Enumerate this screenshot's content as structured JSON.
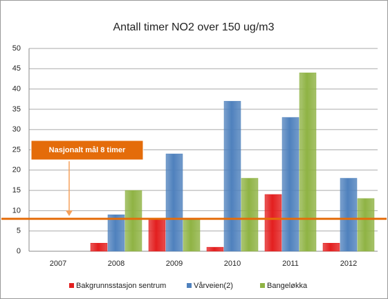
{
  "chart_data": {
    "type": "bar",
    "title": "Antall timer NO2 over 150 ug/m3",
    "categories": [
      "2007",
      "2008",
      "2009",
      "2010",
      "2011",
      "2012"
    ],
    "series": [
      {
        "name": "Bakgrunnsstasjon sentrum",
        "color": "#e31f1f",
        "values": [
          null,
          2,
          8,
          1,
          14,
          2
        ]
      },
      {
        "name": "Vårveien(2)",
        "color": "#4f81bd",
        "values": [
          null,
          9,
          24,
          37,
          33,
          18
        ]
      },
      {
        "name": "Bangeløkka",
        "color": "#8fb344",
        "values": [
          null,
          15,
          8,
          18,
          44,
          13
        ]
      }
    ],
    "ylim": [
      0,
      50
    ],
    "yticks": [
      0,
      5,
      10,
      15,
      20,
      25,
      30,
      35,
      40,
      45,
      50
    ],
    "grid": true,
    "reference_line": {
      "value": 8,
      "label": "Nasjonalt mål 8 timer",
      "color": "#e46c0a"
    },
    "legend": "bottom"
  }
}
